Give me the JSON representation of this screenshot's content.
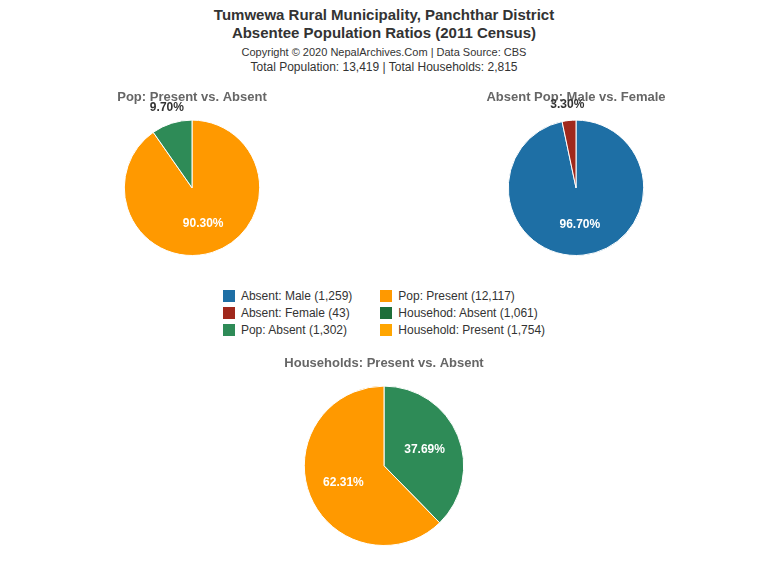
{
  "title": [
    "Tumwewa Rural Municipality, Panchthar District",
    "Absentee Population Ratios (2011 Census)"
  ],
  "annotations": [
    "Copyright © 2020 NepalArchives.Com | Data Source: CBS",
    "Total Population: 13,419 | Total Households: 2,815"
  ],
  "series": [
    {
      "name": "Absent: Male (1,259)",
      "color": "#1E6FA5"
    },
    {
      "name": "Absent: Female (43)",
      "color": "#A0281C"
    },
    {
      "name": "Pop: Absent (1,302)",
      "color": "#2E8B57"
    },
    {
      "name": "Pop: Present (12,117)",
      "color": "#FF9900"
    },
    {
      "name": "Househod: Absent (1,061)",
      "color": "#1E6E3A"
    },
    {
      "name": "Household: Present (1,754)",
      "color": "#FFA500"
    }
  ],
  "chart_data": [
    {
      "type": "pie",
      "title": "Pop: Present vs. Absent",
      "values": [
        90.3,
        9.7
      ],
      "value_labels": [
        "90.30%",
        "9.70%"
      ],
      "colors": [
        "#FF9900",
        "#2E8B57"
      ],
      "data_labels": true
    },
    {
      "type": "pie",
      "title": "Absent Pop: Male vs. Female",
      "values": [
        96.7,
        3.3
      ],
      "value_labels": [
        "96.70%",
        "3.30%"
      ],
      "colors": [
        "#1E6FA5",
        "#A0281C"
      ],
      "data_labels": true
    },
    {
      "type": "pie",
      "title": "Households: Present vs. Absent",
      "values": [
        37.69,
        62.31
      ],
      "value_labels": [
        "37.69%",
        "62.31%"
      ],
      "colors": [
        "#2E8B57",
        "#FF9900"
      ],
      "data_labels": true
    }
  ]
}
